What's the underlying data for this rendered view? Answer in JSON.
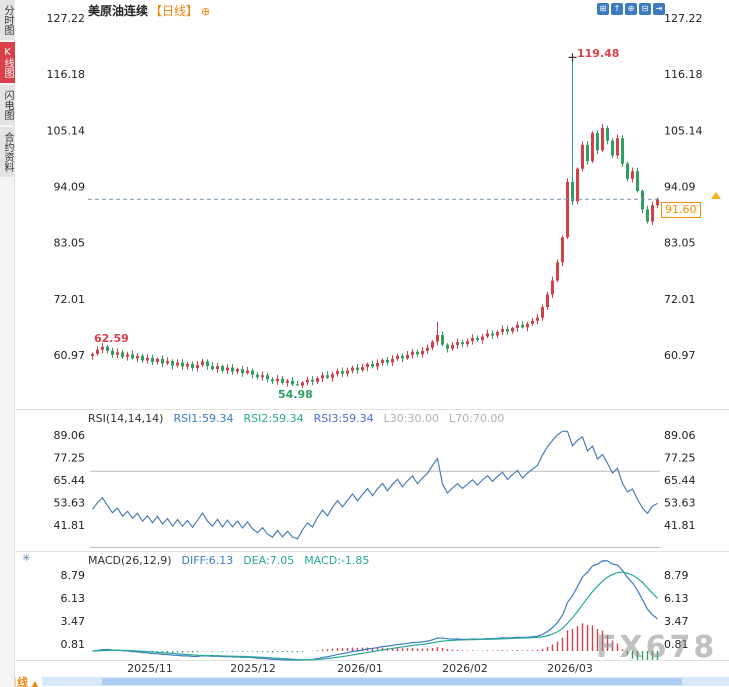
{
  "sidebar": {
    "tabs": [
      {
        "label": "分时图",
        "active": false
      },
      {
        "label": "K线图",
        "active": true
      },
      {
        "label": "闪电图",
        "active": false
      },
      {
        "label": "合约资料",
        "active": false
      }
    ]
  },
  "header": {
    "title": "美原油连续",
    "period": "【日线】",
    "settings_glyph": "⊕"
  },
  "toolbar": {
    "icons": [
      {
        "name": "layout-grid-icon",
        "glyph": "⊞"
      },
      {
        "name": "scroll-up-icon",
        "glyph": "↑"
      },
      {
        "name": "zoom-in-icon",
        "glyph": "⊕"
      },
      {
        "name": "zoom-out-icon",
        "glyph": "⊟"
      },
      {
        "name": "jump-latest-icon",
        "glyph": "⇥"
      }
    ]
  },
  "annotations": {
    "start": "62.59",
    "low": "54.98",
    "high": "119.48",
    "last": "91.60"
  },
  "price_axis": {
    "ticks": [
      127.22,
      116.18,
      105.14,
      94.09,
      83.05,
      72.01,
      60.97
    ]
  },
  "rsi_panel": {
    "label": "RSI(14,14,14)",
    "items": [
      {
        "name": "rsi1-value",
        "text": "RSI1:59.34",
        "color": "#3b7cc4"
      },
      {
        "name": "rsi2-value",
        "text": "RSI2:59.34",
        "color": "#2aa89a"
      },
      {
        "name": "rsi3-value",
        "text": "RSI3:59.34",
        "color": "#4f6bd8"
      },
      {
        "name": "l30-value",
        "text": "L30:30.00",
        "color": "#b0b0b0"
      },
      {
        "name": "l70-value",
        "text": "L70:70.00",
        "color": "#b0b0b0"
      }
    ],
    "ticks": [
      89.06,
      77.25,
      65.44,
      53.63,
      41.81
    ],
    "l70": 70,
    "l30": 30
  },
  "macd_panel": {
    "label": "MACD(26,12,9)",
    "items": [
      {
        "name": "diff-value",
        "text": "DIFF:6.13",
        "color": "#3b7cc4"
      },
      {
        "name": "dea-value",
        "text": "DEA:7.05",
        "color": "#2aa89a"
      },
      {
        "name": "macd-value",
        "text": "MACD:-1.85",
        "color": "#2aa89a"
      }
    ],
    "ticks": [
      8.79,
      6.13,
      3.47,
      0.81
    ]
  },
  "x_axis": {
    "labels": [
      "2025/11",
      "2025/12",
      "2026/01",
      "2026/02",
      "2026/03"
    ]
  },
  "bottom_bar": {
    "period_label": "日线",
    "arrow": "▲"
  },
  "watermark": "FX678",
  "panel_settings_glyph": "✳",
  "colors": {
    "up": "#d3404a",
    "down": "#2f9e60",
    "rsi_line": "#4a7fb5",
    "diff_line": "#3b7cc4",
    "dea_line": "#2aa89a",
    "dashed_line": "#7a93ad",
    "accent_orange": "#f0860a",
    "tick_text": "#222",
    "divider": "#e2e2e2",
    "guide": "#bbbbbb"
  },
  "chart_data": {
    "type": "candlestick",
    "title": "美原油连续 日线",
    "last_price": 91.6,
    "high_annotation": 119.48,
    "low_annotation": 54.98,
    "start_annotation": 62.59,
    "closes": [
      61.2,
      62.0,
      62.59,
      61.8,
      61.0,
      61.5,
      60.6,
      61.1,
      60.3,
      60.8,
      59.9,
      60.4,
      59.6,
      60.2,
      59.3,
      59.8,
      58.9,
      59.5,
      58.7,
      59.2,
      58.4,
      59.0,
      59.7,
      58.8,
      58.2,
      58.8,
      57.9,
      58.5,
      57.7,
      58.2,
      57.4,
      57.9,
      57.1,
      56.6,
      57.0,
      56.2,
      55.8,
      56.3,
      55.5,
      55.9,
      55.2,
      54.98,
      55.6,
      56.1,
      55.7,
      56.4,
      57.0,
      56.5,
      57.2,
      57.8,
      57.3,
      57.9,
      58.5,
      58.0,
      58.6,
      59.2,
      58.7,
      59.4,
      60.0,
      59.5,
      60.2,
      60.8,
      60.3,
      61.0,
      61.6,
      61.1,
      61.8,
      62.4,
      63.6,
      64.9,
      63.0,
      62.2,
      62.9,
      63.5,
      63.1,
      63.7,
      64.3,
      63.9,
      64.6,
      65.2,
      64.8,
      65.5,
      66.1,
      65.6,
      66.3,
      66.9,
      66.4,
      67.1,
      67.7,
      68.3,
      70.4,
      72.9,
      75.6,
      79.2,
      84.1,
      95.0,
      91.2,
      97.6,
      102.3,
      99.1,
      104.6,
      101.2,
      105.6,
      103.1,
      100.2,
      103.6,
      98.6,
      95.6,
      97.1,
      93.2,
      89.6,
      87.2,
      90.4,
      91.6
    ],
    "wick_high_overrides": {
      "69": 67.5,
      "96": 119.48
    },
    "wick_low_overrides": {
      "41": 54.98
    },
    "indicators": {
      "rsi": {
        "period": "14,14,14",
        "rsi1": 59.34,
        "rsi2": 59.34,
        "rsi3": 59.34,
        "l30": 30.0,
        "l70": 70.0
      },
      "macd": {
        "params": "26,12,9",
        "diff": 6.13,
        "dea": 7.05,
        "macd": -1.85
      }
    }
  }
}
